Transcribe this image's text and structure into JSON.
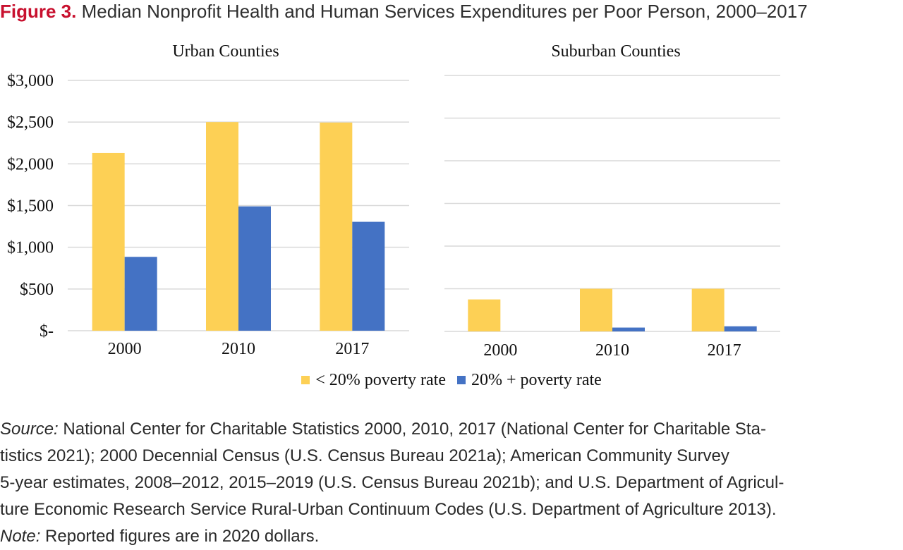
{
  "figure": {
    "label": "Figure 3.",
    "title": "Median Nonprofit Health and Human Services Expenditures per Poor Person, 2000–2017"
  },
  "chart_data": [
    {
      "type": "bar",
      "title": "Urban Counties",
      "categories": [
        "2000",
        "2010",
        "2017"
      ],
      "series": [
        {
          "name": "< 20% poverty rate",
          "values": [
            2130,
            2500,
            2495
          ]
        },
        {
          "name": "20% + poverty rate",
          "values": [
            885,
            1490,
            1305
          ]
        }
      ],
      "yticks": [
        "$-",
        "$500",
        "$1,000",
        "$1,500",
        "$2,000",
        "$2,500",
        "$3,000"
      ],
      "ylim": [
        0,
        3000
      ],
      "grid": true,
      "legend": "bottom"
    },
    {
      "type": "bar",
      "title": "Suburban Counties",
      "categories": [
        "2000",
        "2010",
        "2017"
      ],
      "series": [
        {
          "name": "< 20% poverty rate",
          "values": [
            375,
            500,
            500
          ]
        },
        {
          "name": "20% + poverty rate",
          "values": [
            0,
            45,
            60
          ]
        }
      ],
      "ylim": [
        0,
        3000
      ],
      "grid": true,
      "legend": "bottom"
    }
  ],
  "colors": {
    "series_0": "#FDD055",
    "series_1": "#4472C4",
    "grid": "#d9d9d9",
    "title_label": "#c8102e"
  },
  "notes": {
    "source_label": "Source:",
    "source_line1": "National Center for Charitable Statistics 2000, 2010, 2017 (National Center for Charitable Sta-",
    "source_line2": "tistics 2021); 2000 Decennial Census (U.S. Census Bureau 2021a); American Community Survey",
    "source_line3": "5-year estimates, 2008–2012, 2015–2019 (U.S. Census Bureau 2021b); and U.S. Department of Agricul-",
    "source_line4": "ture Economic Research Service Rural-Urban Continuum Codes (U.S. Department of Agriculture 2013).",
    "note_label": "Note:",
    "note_text": "Reported figures are in 2020 dollars."
  }
}
